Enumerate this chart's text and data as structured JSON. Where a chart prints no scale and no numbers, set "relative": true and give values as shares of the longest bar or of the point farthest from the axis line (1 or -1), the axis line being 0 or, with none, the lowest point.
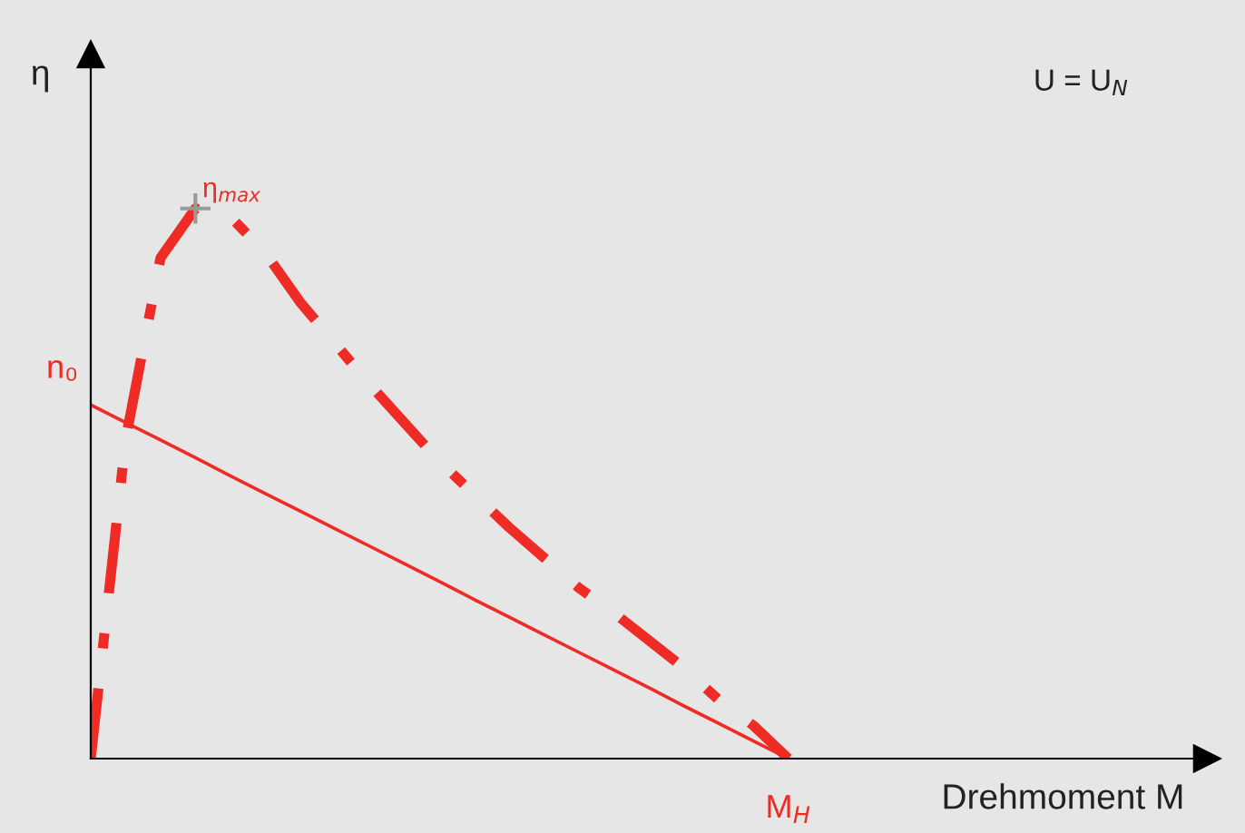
{
  "chart_data": {
    "type": "line",
    "relative": true,
    "xlabel": "Drehmoment M",
    "ylabel": "η",
    "categories": [
      null,
      null,
      null,
      null,
      null,
      null,
      null,
      null,
      null,
      null,
      null,
      null,
      null,
      null,
      null,
      null,
      null,
      null,
      null,
      null,
      null,
      null,
      null,
      null,
      null,
      null,
      null,
      null,
      null,
      null,
      null,
      null,
      null
    ],
    "series": [
      {
        "color": "#ee2b24",
        "line_style": "dashdot",
        "values": [
          0,
          0.58,
          0.91,
          1,
          0.985,
          0.92,
          0.83,
          0.755,
          0.68,
          0.61,
          0.54,
          0.48,
          0.42,
          0.365,
          0.31,
          0.265,
          0.215,
          0.165,
          0.107,
          0.06,
          0,
          null,
          null,
          null,
          null,
          null,
          null,
          null,
          null,
          null,
          null,
          null,
          null
        ]
      },
      {
        "color": "#ee2b24",
        "line_style": "solid",
        "values": [
          0.643,
          0.611,
          0.579,
          0.547,
          0.514,
          0.482,
          0.45,
          0.418,
          0.386,
          0.354,
          0.322,
          0.289,
          0.257,
          0.225,
          0.193,
          0.161,
          0.129,
          0.096,
          0.064,
          0.032,
          0,
          null,
          null,
          null,
          null,
          null,
          null,
          null,
          null,
          null,
          null,
          null,
          null
        ]
      }
    ],
    "annotations": [
      "η$_{max}$",
      "n₀",
      "M$_{H}$",
      "U = U$_{N}$"
    ]
  }
}
